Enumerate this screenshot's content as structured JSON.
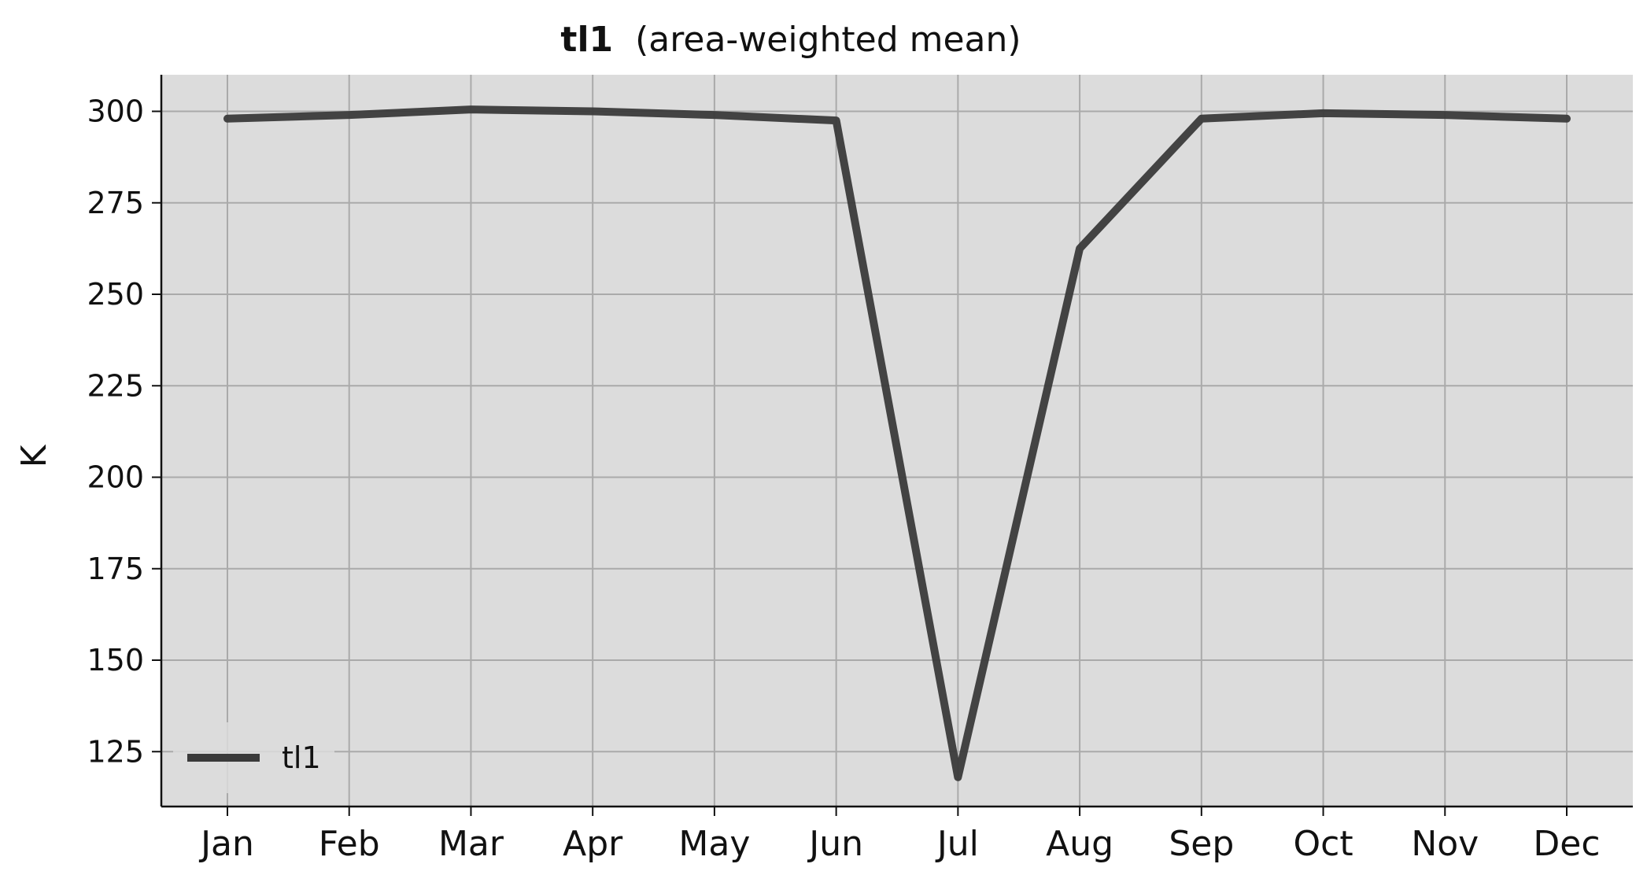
{
  "chart_data": {
    "type": "line",
    "title_bold": "tl1",
    "title_rest": "  (area-weighted mean)",
    "xlabel": "",
    "ylabel": "K",
    "categories": [
      "Jan",
      "Feb",
      "Mar",
      "Apr",
      "May",
      "Jun",
      "Jul",
      "Aug",
      "Sep",
      "Oct",
      "Nov",
      "Dec"
    ],
    "series": [
      {
        "name": "tl1",
        "values": [
          298.0,
          299.0,
          300.5,
          300.0,
          299.0,
          297.5,
          118.0,
          262.5,
          298.0,
          299.5,
          299.0,
          298.0
        ],
        "color": "#3a3a3a"
      }
    ],
    "ylim": [
      110,
      310
    ],
    "yticks": [
      125,
      150,
      175,
      200,
      225,
      250,
      275,
      300
    ],
    "grid": true,
    "legend_position": "lower-left",
    "plot_background": "#dcdcdc",
    "grid_color": "#aaaaaa"
  }
}
